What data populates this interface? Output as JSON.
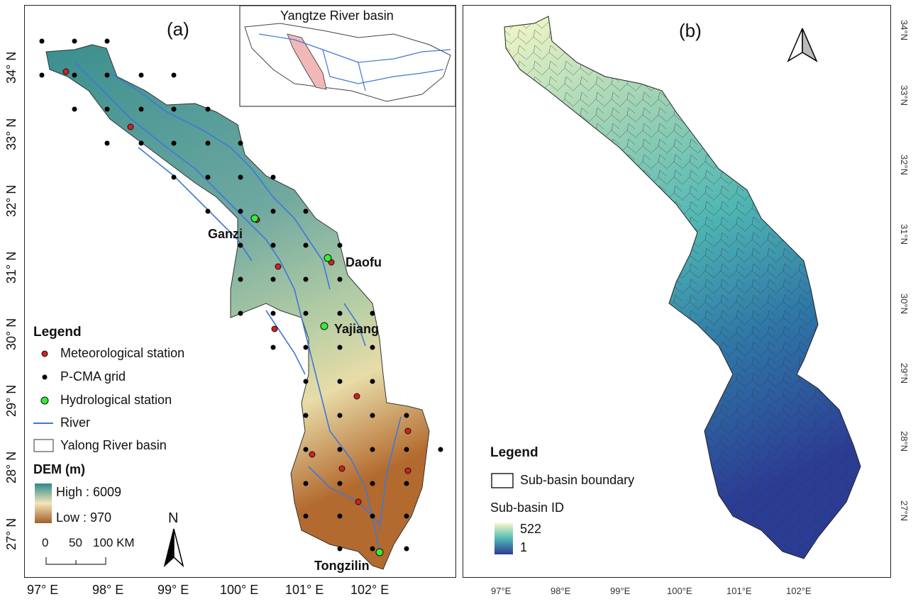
{
  "panel_a": {
    "label": "(a)",
    "inset_title": "Yangtze River basin",
    "x_ticks": [
      "97° E",
      "98° E",
      "99° E",
      "100° E",
      "101° E",
      "102° E"
    ],
    "y_ticks": [
      "34° N",
      "33° N",
      "32° N",
      "31° N",
      "30° N",
      "29° N",
      "28° N",
      "27° N"
    ],
    "stations": {
      "ganzi": "Ganzi",
      "daofu": "Daofu",
      "yajiang": "Yajiang",
      "tongzilin": "Tongzilin"
    },
    "legend": {
      "title": "Legend",
      "items": [
        "Meteorological station",
        "P-CMA grid",
        "Hydrological station",
        "River",
        "Yalong River basin"
      ],
      "dem_title": "DEM (m)",
      "dem_high": "High : 6009",
      "dem_low": "Low : 970",
      "north": "N",
      "scale": [
        "0",
        "50",
        "100 KM"
      ]
    },
    "colors": {
      "river": "#3f78d8",
      "meteo": "#d42020",
      "grid": "#000000",
      "hydro": "#33ee33",
      "dem_high": "#2f8b8b",
      "dem_low": "#a0602a"
    }
  },
  "panel_b": {
    "label": "(b)",
    "x_ticks": [
      "97°E",
      "98°E",
      "99°E",
      "100°E",
      "101°E",
      "102°E"
    ],
    "y_ticks": [
      "34°N",
      "33°N",
      "32°N",
      "31°N",
      "30°N",
      "29°N",
      "28°N",
      "27°N"
    ],
    "legend": {
      "title": "Legend",
      "boundary": "Sub-basin boundary",
      "id_title": "Sub-basin ID",
      "id_high": "522",
      "id_low": "1"
    },
    "colors": {
      "id_high": "#f5f8c8",
      "id_mid": "#4fb6b3",
      "id_low": "#2b3c95"
    }
  }
}
